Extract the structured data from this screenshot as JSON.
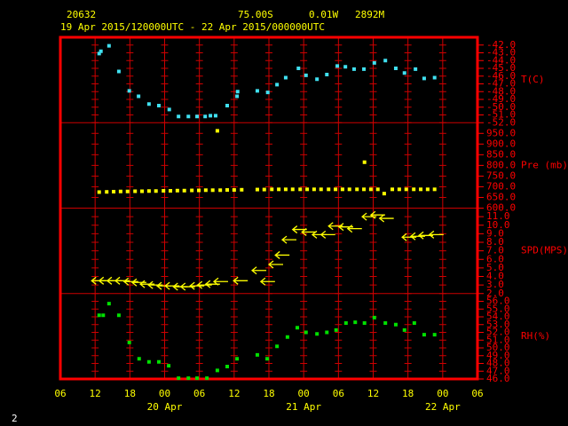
{
  "header": {
    "station": "20632",
    "lat": "75.00S",
    "lon": "0.01W",
    "elev": "2892M",
    "period": "19 Apr 2015/120000UTC - 22 Apr 2015/000000UTC"
  },
  "page_number": "2",
  "x_axis": {
    "xlim": [
      6,
      78
    ],
    "xticks": [
      {
        "value": 6,
        "label": "06"
      },
      {
        "value": 12,
        "label": "12"
      },
      {
        "value": 18,
        "label": "18"
      },
      {
        "value": 24,
        "label": "00"
      },
      {
        "value": 30,
        "label": "06"
      },
      {
        "value": 36,
        "label": "12"
      },
      {
        "value": 42,
        "label": "18"
      },
      {
        "value": 48,
        "label": "00"
      },
      {
        "value": 54,
        "label": "06"
      },
      {
        "value": 60,
        "label": "12"
      },
      {
        "value": 66,
        "label": "18"
      },
      {
        "value": 72,
        "label": "00"
      },
      {
        "value": 78,
        "label": "06"
      }
    ],
    "date_labels": [
      {
        "value": 24,
        "label": "20 Apr"
      },
      {
        "value": 48,
        "label": "21 Apr"
      },
      {
        "value": 72,
        "label": "22 Apr"
      }
    ]
  },
  "chart_data": [
    {
      "type": "scatter",
      "ylabel": "T(C)",
      "color": "#40e0f0",
      "ylim": [
        -52,
        -41
      ],
      "yticks": [
        {
          "value": -52,
          "label": "-52.0"
        },
        {
          "value": -51,
          "label": "-51.0"
        },
        {
          "value": -50,
          "label": "-50.0"
        },
        {
          "value": -49,
          "label": "-49.0"
        },
        {
          "value": -48,
          "label": "-48.0"
        },
        {
          "value": -47,
          "label": "-47.0"
        },
        {
          "value": -46,
          "label": "-46.0"
        },
        {
          "value": -45,
          "label": "-45.0"
        },
        {
          "value": -44,
          "label": "-44.0"
        },
        {
          "value": -43,
          "label": "-43.0"
        },
        {
          "value": -42,
          "label": "-42.0"
        }
      ],
      "x": [
        12.7,
        13.0,
        14.4,
        16.1,
        17.9,
        19.5,
        21.3,
        23.0,
        24.8,
        26.4,
        28.1,
        29.6,
        31.0,
        31.9,
        32.8,
        34.8,
        36.5,
        36.6,
        40.0,
        41.8,
        43.4,
        44.9,
        47.1,
        48.4,
        50.3,
        52.0,
        53.8,
        55.2,
        56.7,
        58.4,
        60.2,
        62.1,
        63.9,
        65.4,
        67.3,
        68.8,
        70.6
      ],
      "values": [
        -43.1,
        -42.8,
        -42.1,
        -45.4,
        -47.9,
        -48.6,
        -49.6,
        -49.8,
        -50.3,
        -51.2,
        -51.2,
        -51.2,
        -51.2,
        -51.1,
        -51.1,
        -49.8,
        -48.6,
        -48.0,
        -47.9,
        -48.1,
        -47.1,
        -46.2,
        -45.0,
        -45.9,
        -46.4,
        -45.8,
        -44.7,
        -44.8,
        -45.1,
        -45.1,
        -44.3,
        -44.0,
        -45.0,
        -45.6,
        -45.1,
        -46.3,
        -46.2
      ]
    },
    {
      "type": "scatter",
      "ylabel": "Pre (mb)",
      "color": "#ffff00",
      "ylim": [
        600,
        1000
      ],
      "yticks": [
        {
          "value": 600,
          "label": "600.0"
        },
        {
          "value": 650,
          "label": "650.0"
        },
        {
          "value": 700,
          "label": "700.0"
        },
        {
          "value": 750,
          "label": "750.0"
        },
        {
          "value": 800,
          "label": "800.0"
        },
        {
          "value": 850,
          "label": "850.0"
        },
        {
          "value": 900,
          "label": "900.0"
        },
        {
          "value": 950,
          "label": "950.0"
        }
      ],
      "x": [
        12.7,
        14.0,
        15.2,
        16.4,
        17.6,
        18.9,
        20.1,
        21.3,
        22.5,
        23.8,
        25.0,
        26.2,
        27.4,
        28.7,
        29.9,
        31.1,
        32.3,
        33.1,
        33.6,
        34.8,
        36.0,
        37.3,
        40.0,
        41.2,
        42.5,
        43.7,
        44.9,
        46.1,
        47.4,
        48.6,
        49.8,
        51.0,
        52.3,
        53.5,
        54.7,
        55.9,
        57.2,
        58.4,
        58.5,
        59.6,
        60.8,
        61.9,
        63.3,
        64.5,
        65.7,
        67.0,
        68.2,
        69.4,
        70.6
      ],
      "values": [
        675,
        676,
        677,
        678,
        678,
        679,
        679,
        680,
        680,
        681,
        681,
        682,
        682,
        683,
        683,
        684,
        684,
        962,
        684,
        685,
        685,
        686,
        687,
        687,
        688,
        688,
        688,
        688,
        688,
        688,
        688,
        688,
        688,
        688,
        688,
        688,
        688,
        688,
        815,
        688,
        688,
        668,
        688,
        688,
        688,
        688,
        688,
        688,
        688
      ]
    },
    {
      "type": "scatter",
      "marker": "arrow",
      "ylabel": "SPD(MPS)",
      "color": "#ffff00",
      "ylim": [
        2,
        12
      ],
      "yticks": [
        {
          "value": 2,
          "label": "2.0"
        },
        {
          "value": 3,
          "label": "3.0"
        },
        {
          "value": 4,
          "label": "4.0"
        },
        {
          "value": 5,
          "label": "5.0"
        },
        {
          "value": 6,
          "label": "6.0"
        },
        {
          "value": 7,
          "label": "7.0"
        },
        {
          "value": 8,
          "label": "8.0"
        },
        {
          "value": 9,
          "label": "9.0"
        },
        {
          "value": 10,
          "label": "10.0"
        },
        {
          "value": 11,
          "label": "11.0"
        }
      ],
      "x": [
        11.4,
        12.7,
        14.1,
        15.5,
        17.0,
        18.4,
        19.8,
        21.2,
        22.7,
        24.1,
        25.5,
        26.8,
        28.4,
        29.7,
        31.1,
        32.5,
        35.9,
        39.1,
        40.6,
        42.0,
        43.1,
        44.3,
        46.1,
        47.7,
        49.5,
        51.0,
        52.3,
        54.1,
        55.6,
        58.1,
        59.6,
        61.1,
        65.0,
        66.5,
        67.9,
        69.7
      ],
      "values": [
        3.5,
        3.5,
        3.5,
        3.5,
        3.4,
        3.3,
        3.1,
        3.0,
        2.9,
        2.9,
        2.8,
        2.8,
        2.9,
        3.0,
        3.1,
        3.4,
        3.5,
        4.7,
        3.4,
        5.4,
        6.5,
        8.3,
        9.5,
        9.2,
        8.9,
        8.9,
        9.9,
        9.8,
        9.6,
        11.0,
        11.2,
        10.8,
        8.6,
        8.7,
        8.8,
        8.9
      ]
    },
    {
      "type": "scatter",
      "ylabel": "RH(%)",
      "color": "#00e000",
      "ylim": [
        46,
        57
      ],
      "yticks": [
        {
          "value": 46,
          "label": "46.0"
        },
        {
          "value": 47,
          "label": "47.0"
        },
        {
          "value": 48,
          "label": "48.0"
        },
        {
          "value": 49,
          "label": "49.0"
        },
        {
          "value": 50,
          "label": "50.0"
        },
        {
          "value": 51,
          "label": "51.0"
        },
        {
          "value": 52,
          "label": "52.0"
        },
        {
          "value": 53,
          "label": "53.0"
        },
        {
          "value": 54,
          "label": "54.0"
        },
        {
          "value": 55,
          "label": "55.0"
        },
        {
          "value": 56,
          "label": "56.0"
        }
      ],
      "x": [
        12.7,
        13.4,
        14.4,
        16.1,
        17.9,
        19.6,
        21.3,
        23.0,
        24.7,
        26.4,
        28.1,
        29.6,
        31.3,
        33.1,
        34.8,
        36.5,
        40.0,
        41.7,
        43.4,
        45.2,
        46.9,
        48.4,
        50.3,
        52.0,
        53.6,
        55.3,
        56.9,
        58.5,
        60.2,
        62.1,
        63.9,
        65.4,
        67.1,
        68.8,
        70.6
      ],
      "values": [
        54.2,
        54.2,
        55.7,
        54.2,
        50.7,
        48.6,
        48.2,
        48.2,
        47.7,
        46.1,
        46.1,
        46.1,
        46.1,
        47.1,
        47.6,
        48.6,
        49.1,
        48.6,
        50.2,
        51.4,
        52.6,
        52.0,
        51.8,
        52.0,
        52.3,
        53.2,
        53.3,
        53.2,
        53.9,
        53.2,
        53.0,
        52.3,
        53.2,
        51.7,
        51.7
      ]
    }
  ]
}
